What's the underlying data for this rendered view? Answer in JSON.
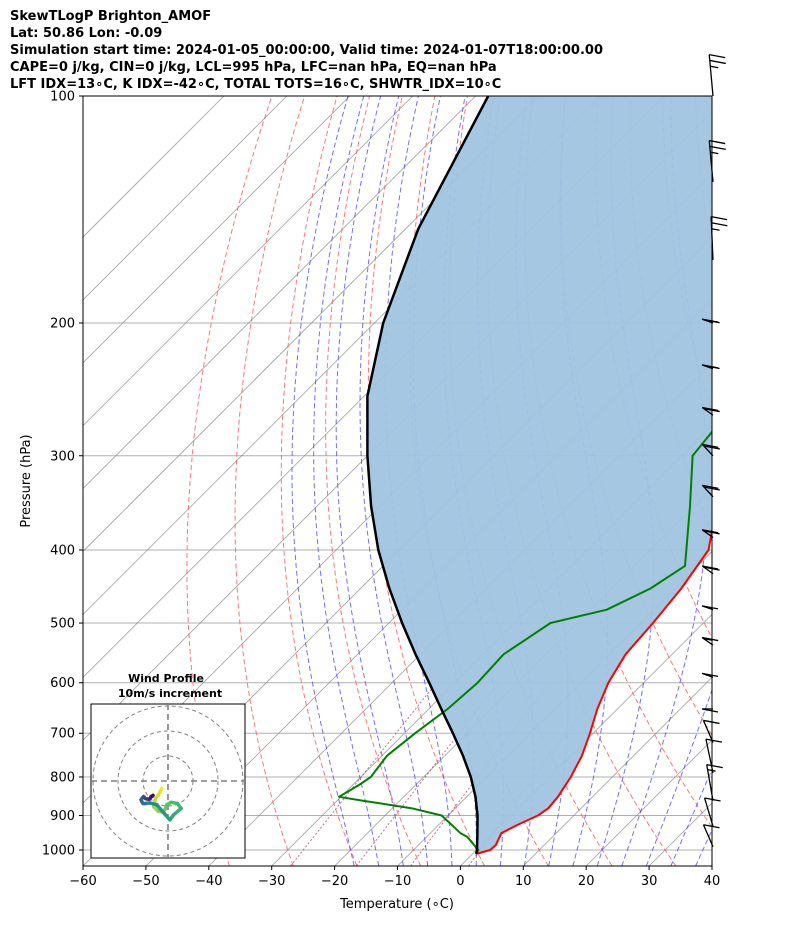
{
  "header": {
    "line1": "SkewTLogP Brighton_AMOF",
    "line2": "Lat: 50.86   Lon: -0.09",
    "line3": "Simulation start time: 2024-01-05_00:00:00, Valid time: 2024-01-07T18:00:00.00",
    "line4": "CAPE=0 j/kg, CIN=0 j/kg, LCL=995 hPa, LFC=nan hPa, EQ=nan hPa",
    "line5": "LFT IDX=13∘C, K IDX=-42∘C, TOTAL TOTS=16∘C, SHWTR_IDX=10∘C"
  },
  "chart_data": {
    "type": "line",
    "xlabel": "Temperature (∘C)",
    "ylabel": "Pressure (hPa)",
    "xlim": [
      -60,
      40
    ],
    "ylim": [
      1050,
      100
    ],
    "y_scale": "log",
    "grid": true,
    "x_ticks": [
      "−60",
      "−50",
      "−40",
      "−30",
      "−20",
      "−10",
      "0",
      "10",
      "20",
      "30",
      "40"
    ],
    "y_ticks": [
      "100",
      "200",
      "300",
      "400",
      "500",
      "600",
      "700",
      "800",
      "900",
      "1000"
    ],
    "series": [
      {
        "color": "#ff0000",
        "pressure": [
          1012,
          1000,
          985,
          950,
          925,
          900,
          880,
          850,
          800,
          750,
          700,
          650,
          600,
          550,
          500,
          450,
          400,
          370,
          340,
          300,
          270,
          240,
          220,
          190,
          170,
          150,
          130,
          115,
          100
        ],
        "x": [
          0.6,
          2.2,
          2.3,
          1.3,
          2.6,
          4.3,
          4.8,
          4.5,
          3.4,
          1.8,
          -0.5,
          -3.2,
          -5.6,
          -7.4,
          -8.0,
          -9.0,
          -10.8,
          -14.1,
          -15.4,
          -14.5,
          -11.5,
          -9.5,
          -9.0,
          -6.5,
          -3.8,
          -1.0,
          2.2,
          6.8,
          15.5
        ]
      },
      {
        "color": "#008000",
        "pressure": [
          1012,
          1000,
          960,
          950,
          900,
          880,
          860,
          850,
          820,
          800,
          750,
          700,
          650,
          600,
          550,
          500,
          480,
          450,
          420,
          350,
          300,
          250,
          220,
          200,
          180,
          150,
          130,
          100
        ],
        "x": [
          0.6,
          0.3,
          -3.6,
          -5.2,
          -11.0,
          -17.0,
          -26.0,
          -30.3,
          -29.0,
          -28.4,
          -29.2,
          -28.3,
          -27.0,
          -26.4,
          -26.8,
          -24.3,
          -17.5,
          -13.9,
          -12.0,
          -20.7,
          -28.3,
          -30.1,
          -30.5,
          -33.0,
          -34.9,
          -29.9,
          -25.5,
          -17.2
        ]
      },
      {
        "color": "#000000",
        "pressure": [
          1012,
          1000,
          950,
          900,
          850,
          800,
          750,
          700,
          650,
          600,
          550,
          500,
          450,
          400,
          350,
          300,
          250,
          200,
          150,
          100
        ],
        "x": [
          0.6,
          0.1,
          -2.5,
          -5.3,
          -8.6,
          -12.5,
          -17.1,
          -22.3,
          -28.0,
          -34.1,
          -40.8,
          -47.9,
          -55.4,
          -63.3,
          -71.4,
          -80.0,
          -89.5,
          -98.6,
          -108.0,
          -118.0
        ]
      }
    ],
    "shaded_region": "between red line and black line",
    "shade_color": "#a0c4e0",
    "wind_barbs": {
      "pressure": [
        100,
        130,
        165,
        200,
        230,
        265,
        300,
        340,
        385,
        430,
        480,
        535,
        590,
        650,
        720,
        790,
        860,
        930,
        990
      ],
      "direction_deg": [
        340,
        340,
        350,
        275,
        275,
        280,
        285,
        285,
        280,
        280,
        275,
        280,
        275,
        270,
        300,
        320,
        325,
        310,
        300
      ],
      "speed_kt": [
        25,
        25,
        25,
        20,
        20,
        20,
        20,
        20,
        20,
        20,
        15,
        15,
        10,
        10,
        10,
        10,
        15,
        10,
        10
      ]
    },
    "hodograph": {
      "title": "Wind Profile",
      "subtitle": "10m/s increment",
      "u": [
        -1,
        -1.2,
        -1.5,
        -2.0,
        -2.3,
        -1.6,
        -0.8,
        -0.4,
        -0.2,
        0.5,
        1.5,
        2.1,
        0.9,
        0.3,
        -0.6,
        -1.8,
        -2.9,
        -3.6,
        -4.0,
        -4.2,
        -4.3,
        -4.1,
        -3.9,
        -3.6,
        -3.3,
        -3.0,
        -2.8,
        -2.7,
        -2.5,
        -2.4
      ],
      "v": [
        -1.2,
        -1.6,
        -2.2,
        -2.8,
        -4.1,
        -4.8,
        -5.0,
        -4.4,
        -3.8,
        -3.4,
        -3.6,
        -4.4,
        -5.4,
        -6.2,
        -5.2,
        -3.8,
        -3.5,
        -3.6,
        -3.6,
        -3.3,
        -3.0,
        -2.7,
        -2.5,
        -2.8,
        -2.9,
        -2.9,
        -2.7,
        -2.5,
        -2.4,
        -2.3
      ]
    },
    "dry_adiabat_color": "#ff5555",
    "moist_adiabat_color": "#4040ff",
    "mixing_ratio_color": "#aa3366",
    "isotherm_color": "#888888"
  }
}
